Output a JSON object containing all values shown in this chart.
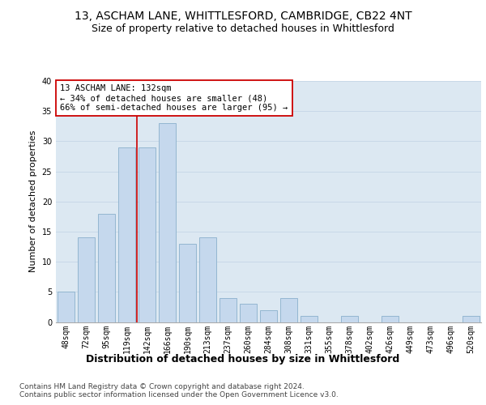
{
  "title1": "13, ASCHAM LANE, WHITTLESFORD, CAMBRIDGE, CB22 4NT",
  "title2": "Size of property relative to detached houses in Whittlesford",
  "xlabel": "Distribution of detached houses by size in Whittlesford",
  "ylabel": "Number of detached properties",
  "categories": [
    "48sqm",
    "72sqm",
    "95sqm",
    "119sqm",
    "142sqm",
    "166sqm",
    "190sqm",
    "213sqm",
    "237sqm",
    "260sqm",
    "284sqm",
    "308sqm",
    "331sqm",
    "355sqm",
    "378sqm",
    "402sqm",
    "426sqm",
    "449sqm",
    "473sqm",
    "496sqm",
    "520sqm"
  ],
  "values": [
    5,
    14,
    18,
    29,
    29,
    33,
    13,
    14,
    4,
    3,
    2,
    4,
    1,
    0,
    1,
    0,
    1,
    0,
    0,
    0,
    1
  ],
  "bar_color": "#c5d8ed",
  "bar_edge_color": "#8ab0cc",
  "vline_x_index": 3.5,
  "vline_color": "#cc0000",
  "annotation_text": "13 ASCHAM LANE: 132sqm\n← 34% of detached houses are smaller (48)\n66% of semi-detached houses are larger (95) →",
  "annotation_box_color": "#ffffff",
  "annotation_box_edge": "#cc0000",
  "ylim": [
    0,
    40
  ],
  "yticks": [
    0,
    5,
    10,
    15,
    20,
    25,
    30,
    35,
    40
  ],
  "grid_color": "#c8d8e8",
  "bg_color": "#dce8f2",
  "footer_text": "Contains HM Land Registry data © Crown copyright and database right 2024.\nContains public sector information licensed under the Open Government Licence v3.0.",
  "title_fontsize": 10,
  "subtitle_fontsize": 9,
  "xlabel_fontsize": 9,
  "ylabel_fontsize": 8,
  "tick_fontsize": 7,
  "annotation_fontsize": 7.5,
  "footer_fontsize": 6.5
}
